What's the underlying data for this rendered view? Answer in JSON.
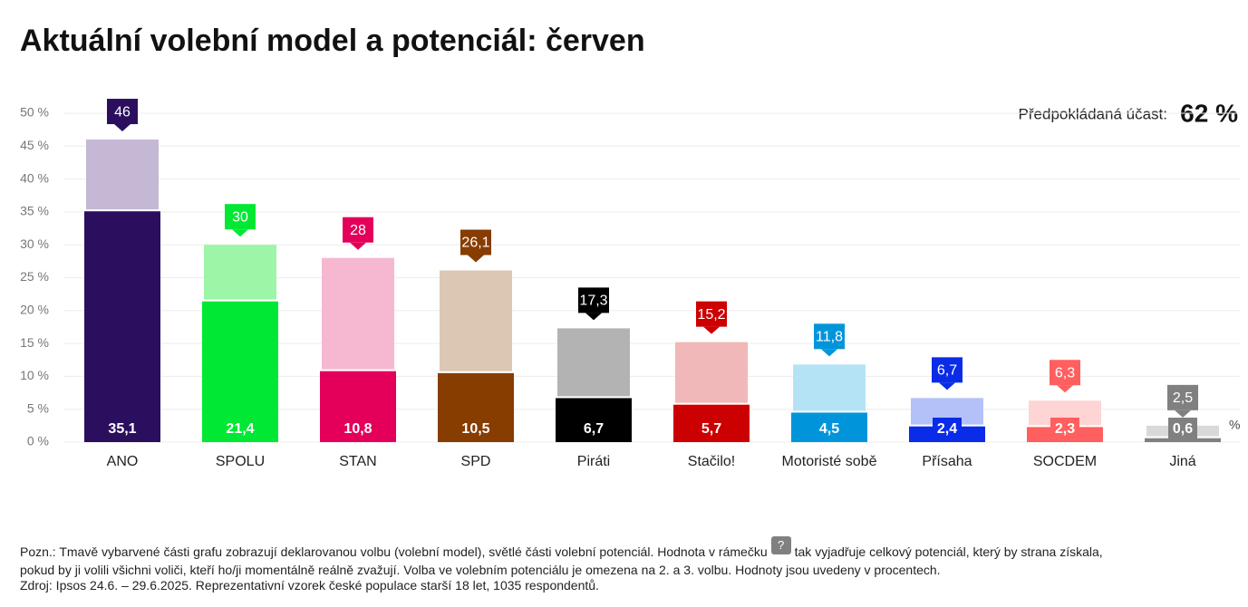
{
  "chart_data": {
    "type": "bar",
    "title": "Aktuální volební model a potenciál: červen",
    "turnout_label": "Předpokládaná účast:",
    "turnout_value": "62 %",
    "unit_label": "%",
    "categories": [
      "ANO",
      "SPOLU",
      "STAN",
      "SPD",
      "Piráti",
      "Stačilo!",
      "Motoristé sobě",
      "Přísaha",
      "SOCDEM",
      "Jiná"
    ],
    "series": [
      {
        "values": [
          35.1,
          21.4,
          10.8,
          10.5,
          6.7,
          5.7,
          4.5,
          2.4,
          2.3,
          0.6
        ],
        "value_labels": [
          "35,1",
          "21,4",
          "10,8",
          "10,5",
          "6,7",
          "5,7",
          "4,5",
          "2,4",
          "2,3",
          "0,6"
        ],
        "colors": [
          "#2b0f5e",
          "#00e833",
          "#e4005a",
          "#873c00",
          "#000000",
          "#cc0000",
          "#0095db",
          "#0a2ce8",
          "#ff5f5f",
          "#808080"
        ]
      },
      {
        "values": [
          46,
          30,
          28,
          26.1,
          17.3,
          15.2,
          11.8,
          6.7,
          6.3,
          2.5
        ],
        "value_labels": [
          "46",
          "30",
          "28",
          "26,1",
          "17,3",
          "15,2",
          "11,8",
          "6,7",
          "6,3",
          "2,5"
        ],
        "colors": [
          "#c4b8d4",
          "#9df5a8",
          "#f6b8d1",
          "#dcc7b4",
          "#b3b3b3",
          "#f0b8b8",
          "#b5e3f6",
          "#b4c1f8",
          "#ffd4d4",
          "#d9d9d9"
        ]
      }
    ],
    "ylim": [
      0,
      50
    ],
    "yticks": [
      {
        "value": 0,
        "label": "0 %"
      },
      {
        "value": 5,
        "label": "5 %"
      },
      {
        "value": 10,
        "label": "10 %"
      },
      {
        "value": 15,
        "label": "15 %"
      },
      {
        "value": 20,
        "label": "20 %"
      },
      {
        "value": 25,
        "label": "25 %"
      },
      {
        "value": 30,
        "label": "30 %"
      },
      {
        "value": 35,
        "label": "35 %"
      },
      {
        "value": 40,
        "label": "40 %"
      },
      {
        "value": 45,
        "label": "45 %"
      },
      {
        "value": 50,
        "label": "50 %"
      }
    ],
    "grid": true
  },
  "note": {
    "text_1": "Pozn.: Tmavě vybarvené části grafu zobrazují deklarovanou volbu (volební model), světlé části volební potenciál. Hodnota v rámečku",
    "icon": "?",
    "text_2": "tak vyjadřuje celkový potenciál, který by strana získala,",
    "text_3": "pokud by ji volili všichni voliči, kteří ho/ji momentálně reálně zvažují. Volba ve volebním potenciálu je omezena na 2. a 3. volbu. Hodnoty jsou uvedeny v procentech."
  },
  "source": "Zdroj: Ipsos 24.6. – 29.6.2025. Reprezentativní vzorek české populace starší 18 let, 1035 respondentů."
}
